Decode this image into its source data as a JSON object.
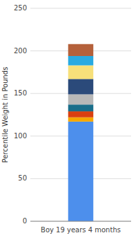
{
  "chart_data": {
    "type": "bar",
    "stacked": true,
    "ylabel": "Percentile Weight in Pounds",
    "categories": [
      "Boy 19 years 4 months"
    ],
    "series": [
      {
        "color": "#4d8fec",
        "values": [
          117
        ]
      },
      {
        "color": "#f5a800",
        "values": [
          5
        ]
      },
      {
        "color": "#d94010",
        "values": [
          7
        ]
      },
      {
        "color": "#1a6e8a",
        "values": [
          8
        ]
      },
      {
        "color": "#b8b8b8",
        "values": [
          12
        ]
      },
      {
        "color": "#2b4a7a",
        "values": [
          18
        ]
      },
      {
        "color": "#f7e07a",
        "values": [
          16
        ]
      },
      {
        "color": "#29aae2",
        "values": [
          11
        ]
      },
      {
        "color": "#b5613b",
        "values": [
          14
        ]
      }
    ],
    "ylim": [
      0,
      250
    ],
    "yticks": [
      0,
      50,
      100,
      150,
      200,
      250
    ],
    "grid": true
  }
}
